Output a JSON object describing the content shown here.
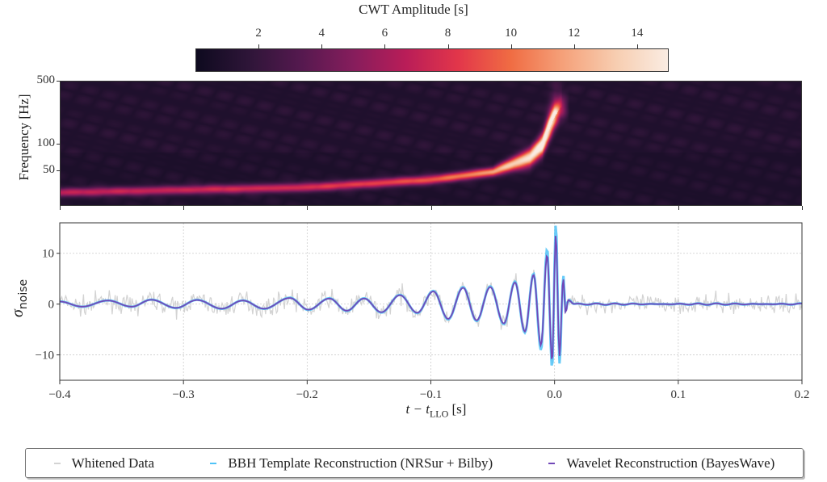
{
  "chart_data": [
    {
      "type": "heatmap",
      "colorbar": {
        "title": "CWT Amplitude [s]",
        "range": [
          0,
          15
        ],
        "ticks": [
          "2",
          "4",
          "6",
          "8",
          "10",
          "12",
          "14"
        ],
        "colormap": [
          "#0e0a1f",
          "#2e1538",
          "#55194f",
          "#861d5c",
          "#b91d58",
          "#e2364a",
          "#f06c43",
          "#f5a17a",
          "#f7cdb0",
          "#faece2"
        ]
      },
      "ylabel": "Frequency [Hz]",
      "yscale": "log",
      "ylim": [
        20,
        500
      ],
      "yticks": [
        "500",
        "100",
        "50"
      ],
      "xlim": [
        -0.4,
        0.2
      ],
      "ridge": {
        "t": [
          -0.4,
          -0.2,
          -0.1,
          -0.05,
          -0.02,
          -0.01,
          0.0,
          0.005
        ],
        "freq_hz": [
          28,
          32,
          39,
          48,
          70,
          96,
          200,
          260
        ],
        "amplitude": [
          6,
          7,
          8.5,
          11,
          14,
          15,
          11,
          6
        ]
      }
    },
    {
      "type": "line",
      "xlabel": "t − t",
      "xlabel_sub": "LLO",
      "xlabel_unit": " [s]",
      "ylabel": "σ",
      "ylabel_sub": "noise",
      "xlim": [
        -0.4,
        0.2
      ],
      "ylim": [
        -15,
        16
      ],
      "xticks": [
        "−0.4",
        "−0.3",
        "−0.2",
        "−0.1",
        "0.0",
        "0.1",
        "0.2"
      ],
      "yticks": [
        "10",
        "0",
        "−10"
      ],
      "grid": true,
      "legend_position": "bottom",
      "series": [
        {
          "name": "Whitened Data",
          "color": "#d3d3d3"
        },
        {
          "name": "BBH Template Reconstruction (NRSur + Bilby)",
          "color": "#4fc3f7"
        },
        {
          "name": "Wavelet Reconstruction (BayesWave)",
          "color": "#7148b8"
        }
      ],
      "reconstruction_extrema": {
        "t": [
          -0.4,
          -0.382,
          -0.361,
          -0.342,
          -0.326,
          -0.306,
          -0.289,
          -0.269,
          -0.252,
          -0.235,
          -0.214,
          -0.199,
          -0.182,
          -0.168,
          -0.154,
          -0.14,
          -0.125,
          -0.111,
          -0.098,
          -0.086,
          -0.074,
          -0.063,
          -0.052,
          -0.041,
          -0.032,
          -0.024,
          -0.017,
          -0.011,
          -0.006,
          -0.002,
          0.001,
          0.004,
          0.007,
          0.009,
          0.011,
          0.016
        ],
        "y": [
          0.5,
          -0.5,
          0.7,
          -0.5,
          0.85,
          -0.75,
          0.8,
          -0.9,
          0.7,
          -0.9,
          1.2,
          -1.1,
          1.1,
          -1.3,
          1.1,
          -1.6,
          1.75,
          -1.7,
          2.5,
          -2.9,
          3.2,
          -3.2,
          3.35,
          -3.8,
          4.25,
          -5.4,
          5.75,
          -8.1,
          9.7,
          -11.3,
          13.7,
          -10.2,
          5,
          -1.7,
          0.8,
          0
        ]
      }
    }
  ]
}
